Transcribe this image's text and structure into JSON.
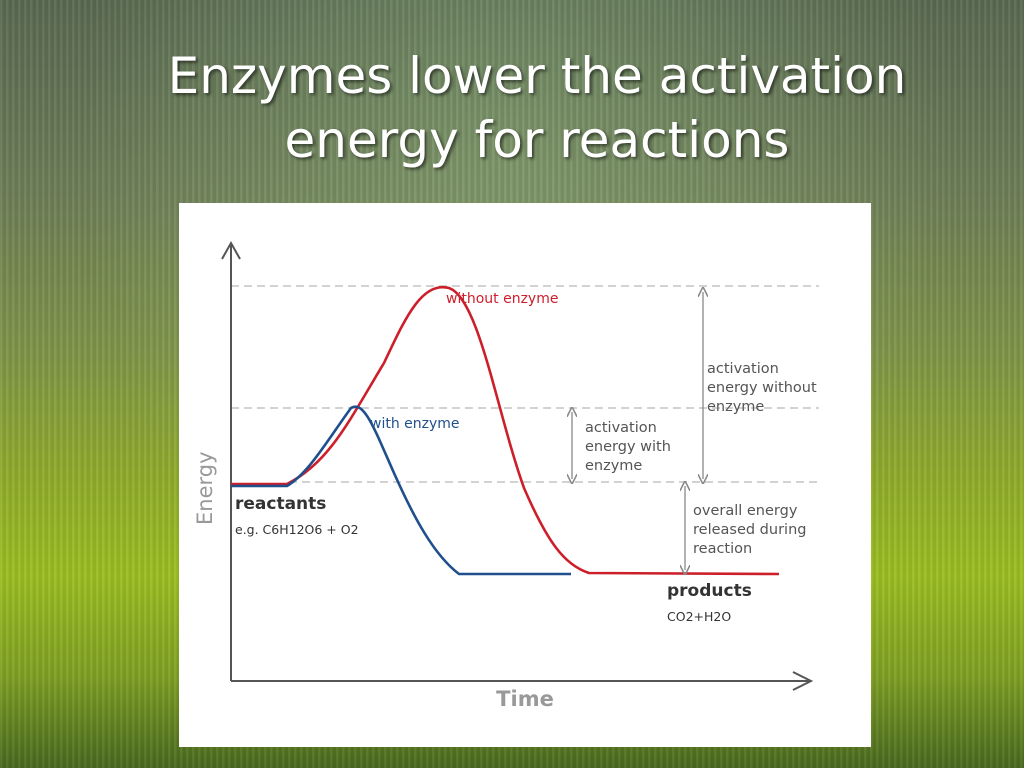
{
  "slide": {
    "title_line1": "Enzymes lower the activation",
    "title_line2": "energy for reactions"
  },
  "diagram": {
    "y_axis_label": "Energy",
    "x_axis_label": "Time",
    "curve_without_label": "without enzyme",
    "curve_with_label": "with enzyme",
    "reactants_label": "reactants",
    "reactants_example": "e.g. C6H12O6 + O2",
    "products_label": "products",
    "products_example": "CO2+H2O",
    "annotation_without": [
      "activation",
      "energy without",
      "enzyme"
    ],
    "annotation_with": [
      "activation",
      "energy with",
      "enzyme"
    ],
    "annotation_released": [
      "overall energy",
      "released during",
      "reaction"
    ],
    "colors": {
      "without_enzyme": "#cc1f2a",
      "with_enzyme": "#1f4f8c",
      "axis": "#555555",
      "guide": "#bbbbbb"
    }
  }
}
